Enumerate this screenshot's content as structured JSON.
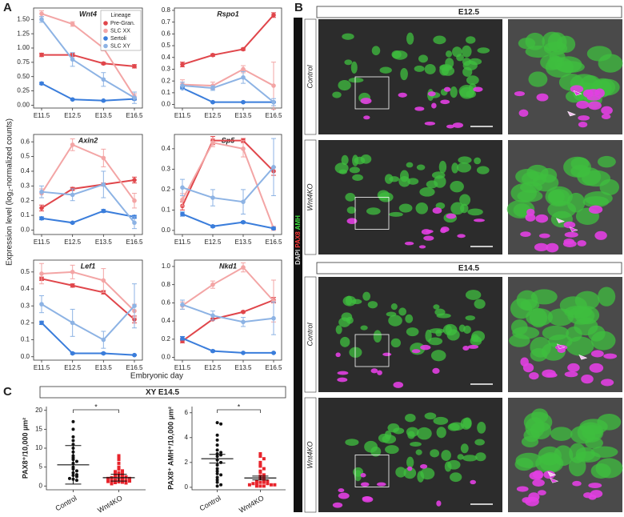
{
  "panel_labels": [
    "A",
    "B",
    "C"
  ],
  "shared": {
    "ylabel": "Expression level (log₂-normalized counts)",
    "xlabel": "Embryonic day"
  },
  "legend": {
    "title": "Lineage",
    "entries": [
      {
        "name": "Pre-Gran.",
        "color": "#e0464b"
      },
      {
        "name": "SLC XX",
        "color": "#f3a5a5"
      },
      {
        "name": "Sertoli",
        "color": "#3a7ddb"
      },
      {
        "name": "SLC XY",
        "color": "#8db3e4"
      }
    ]
  },
  "chart_data": [
    {
      "type": "line",
      "title": "Wnt4",
      "categories": [
        "E11.5",
        "E12.5",
        "E13.5",
        "E16.5"
      ],
      "ylim": [
        -0.05,
        1.7
      ],
      "yticks": [
        {
          "value": 0,
          "label": "0.00"
        },
        0.25,
        {
          "value": 0.5,
          "label": "0.50"
        },
        0.75,
        {
          "value": 1,
          "label": "1.00"
        },
        1.25,
        {
          "value": 1.5,
          "label": "1.50"
        }
      ],
      "series": [
        {
          "values": [
            0.88,
            0.88,
            0.73,
            0.68
          ],
          "errors": [
            0.03,
            0.03,
            0.02,
            0.03
          ]
        },
        {
          "values": [
            1.6,
            1.42,
            1.0,
            0.15
          ],
          "errors": [
            0.05,
            0.04,
            0.05,
            0.05
          ]
        },
        {
          "values": [
            0.38,
            0.1,
            0.08,
            0.11
          ],
          "errors": [
            0.02,
            0.01,
            0.01,
            0.02
          ]
        },
        {
          "values": [
            1.5,
            0.8,
            0.45,
            0.13
          ],
          "errors": [
            0.05,
            0.12,
            0.12,
            0.1
          ]
        }
      ]
    },
    {
      "type": "line",
      "title": "Rspo1",
      "categories": [
        "E11.5",
        "E12.5",
        "E13.5",
        "E16.5"
      ],
      "ylim": [
        -0.03,
        0.82
      ],
      "yticks": [
        {
          "value": 0,
          "label": "0.0"
        },
        0.1,
        0.2,
        0.3,
        0.4,
        0.5,
        0.6,
        0.7,
        0.8
      ],
      "series": [
        {
          "values": [
            0.34,
            0.42,
            0.47,
            0.76
          ],
          "errors": [
            0.02,
            0.01,
            0.01,
            0.02
          ]
        },
        {
          "values": [
            0.17,
            0.16,
            0.3,
            0.16
          ],
          "errors": [
            0.04,
            0.03,
            0.03,
            0.2
          ]
        },
        {
          "values": [
            0.14,
            0.02,
            0.02,
            0.02
          ],
          "errors": [
            0.01,
            0.005,
            0.005,
            0.005
          ]
        },
        {
          "values": [
            0.16,
            0.14,
            0.23,
            0.02
          ],
          "errors": [
            0.03,
            0.02,
            0.05,
            0.03
          ]
        }
      ]
    },
    {
      "type": "line",
      "title": "Axin2",
      "categories": [
        "E11.5",
        "E12.5",
        "E13.5",
        "E16.5"
      ],
      "ylim": [
        -0.03,
        0.65
      ],
      "yticks": [
        {
          "value": 0,
          "label": "0.0"
        },
        0.1,
        0.2,
        0.3,
        0.4,
        0.5,
        0.6
      ],
      "series": [
        {
          "values": [
            0.15,
            0.28,
            0.31,
            0.34
          ],
          "errors": [
            0.02,
            0.01,
            0.01,
            0.02
          ]
        },
        {
          "values": [
            0.25,
            0.58,
            0.49,
            0.2
          ],
          "errors": [
            0.03,
            0.04,
            0.06,
            0.05
          ]
        },
        {
          "values": [
            0.08,
            0.05,
            0.13,
            0.09
          ],
          "errors": [
            0.01,
            0.005,
            0.01,
            0.01
          ]
        },
        {
          "values": [
            0.26,
            0.24,
            0.31,
            0.05
          ],
          "errors": [
            0.04,
            0.04,
            0.09,
            0.04
          ]
        }
      ]
    },
    {
      "type": "line",
      "title": "Sp5",
      "categories": [
        "E11.5",
        "E12.5",
        "E13.5",
        "E16.5"
      ],
      "ylim": [
        -0.02,
        0.47
      ],
      "yticks": [
        {
          "value": 0,
          "label": "0.0"
        },
        0.1,
        0.2,
        0.3,
        0.4
      ],
      "series": [
        {
          "values": [
            0.12,
            0.44,
            0.44,
            0.29
          ],
          "errors": [
            0.02,
            0.02,
            0.01,
            0.02
          ]
        },
        {
          "values": [
            0.15,
            0.43,
            0.4,
            0.01
          ],
          "errors": [
            0.03,
            0.02,
            0.04,
            0.01
          ]
        },
        {
          "values": [
            0.08,
            0.02,
            0.04,
            0.01
          ],
          "errors": [
            0.01,
            0.005,
            0.005,
            0.005
          ]
        },
        {
          "values": [
            0.21,
            0.16,
            0.14,
            0.31
          ],
          "errors": [
            0.04,
            0.04,
            0.06,
            0.14
          ]
        }
      ]
    },
    {
      "type": "line",
      "title": "Lef1",
      "categories": [
        "E11.5",
        "E12.5",
        "E13.5",
        "E16.5"
      ],
      "ylim": [
        -0.02,
        0.57
      ],
      "yticks": [
        {
          "value": 0,
          "label": "0.0"
        },
        0.1,
        0.2,
        0.3,
        0.4,
        0.5
      ],
      "series": [
        {
          "values": [
            0.46,
            0.42,
            0.38,
            0.22
          ],
          "errors": [
            0.01,
            0.01,
            0.01,
            0.02
          ]
        },
        {
          "values": [
            0.49,
            0.5,
            0.45,
            0.27
          ],
          "errors": [
            0.06,
            0.04,
            0.07,
            0.04
          ]
        },
        {
          "values": [
            0.2,
            0.02,
            0.02,
            0.01
          ],
          "errors": [
            0.01,
            0.005,
            0.005,
            0.003
          ]
        },
        {
          "values": [
            0.31,
            0.2,
            0.1,
            0.3
          ],
          "errors": [
            0.05,
            0.08,
            0.05,
            0.13
          ]
        }
      ]
    },
    {
      "type": "line",
      "title": "Nkd1",
      "categories": [
        "E11.5",
        "E12.5",
        "E13.5",
        "E16.5"
      ],
      "ylim": [
        -0.03,
        1.07
      ],
      "yticks": [
        {
          "value": 0,
          "label": "0.0"
        },
        0.2,
        0.4,
        0.6,
        0.8,
        {
          "value": 1,
          "label": "1.0"
        }
      ],
      "series": [
        {
          "values": [
            0.18,
            0.42,
            0.5,
            0.63
          ],
          "errors": [
            0.02,
            0.01,
            0.01,
            0.03
          ]
        },
        {
          "values": [
            0.57,
            0.8,
            0.99,
            0.62
          ],
          "errors": [
            0.04,
            0.04,
            0.05,
            0.23
          ]
        },
        {
          "values": [
            0.21,
            0.07,
            0.05,
            0.05
          ],
          "errors": [
            0.02,
            0.01,
            0.005,
            0.005
          ]
        },
        {
          "values": [
            0.58,
            0.46,
            0.39,
            0.43
          ],
          "errors": [
            0.05,
            0.05,
            0.05,
            0.18
          ]
        }
      ]
    },
    {
      "type": "strip",
      "ylabel": "PAX8⁺/10,000 µm²",
      "categories": [
        "Control",
        "Wnt4KO"
      ],
      "colors": [
        "#111111",
        "#e8242c"
      ],
      "ylim": [
        -1,
        21
      ],
      "yticks": [
        0,
        5,
        10,
        15,
        20
      ],
      "significance": "*",
      "points": [
        [
          17,
          15,
          13,
          12,
          11,
          10,
          9,
          8,
          7.5,
          7,
          6.5,
          6,
          5,
          4.5,
          4,
          3.5,
          3,
          2.8,
          2.5,
          2,
          1.8,
          1.5
        ],
        [
          8,
          7.5,
          7,
          6,
          5,
          4.5,
          4,
          3.8,
          3.5,
          3.2,
          3,
          2.8,
          2.6,
          2.5,
          2.4,
          2.2,
          2,
          2,
          1.8,
          1.7,
          1.6,
          1.5,
          1.4,
          1.3,
          1.2,
          1.1,
          1,
          0.9,
          0.8,
          0.6
        ]
      ],
      "means": [
        5.6,
        2.2
      ],
      "errors": [
        5.1,
        0.9
      ]
    },
    {
      "type": "strip",
      "ylabel": "PAX8⁺ AMH⁺/10,000 µm²",
      "categories": [
        "Control",
        "Wnt4KO"
      ],
      "colors": [
        "#111111",
        "#e8242c"
      ],
      "ylim": [
        -0.2,
        6.5
      ],
      "yticks": [
        0,
        2,
        4,
        6
      ],
      "significance": "*",
      "points": [
        [
          5.2,
          5.1,
          4.2,
          3.8,
          3.4,
          3.0,
          2.8,
          2.7,
          2.6,
          2.5,
          2.2,
          2.0,
          1.8,
          1.5,
          1.3,
          1.1,
          1.0,
          0.8,
          0.6,
          0.4,
          0.2,
          0.1
        ],
        [
          2.7,
          2.5,
          2.3,
          2.0,
          1.8,
          1.7,
          1.5,
          1.3,
          1.2,
          1.0,
          0.9,
          0.8,
          0.7,
          0.6,
          0.5,
          0.5,
          0.4,
          0.4,
          0.3,
          0.3,
          0.3,
          0.2,
          0.2,
          0.2,
          0.1,
          0.1,
          0.1
        ]
      ],
      "means": [
        2.3,
        0.75
      ],
      "errors": [
        0.35,
        0.15
      ]
    }
  ],
  "panel_c_title": "XY E14.5",
  "micrographs": {
    "stain_label": [
      "DAPI",
      "PAX8",
      "AMH"
    ],
    "groups": [
      {
        "stage": "E12.5",
        "rows": [
          "Control",
          "Wnt4KO"
        ]
      },
      {
        "stage": "E14.5",
        "rows": [
          "Control",
          "Wnt4KO"
        ]
      }
    ]
  }
}
